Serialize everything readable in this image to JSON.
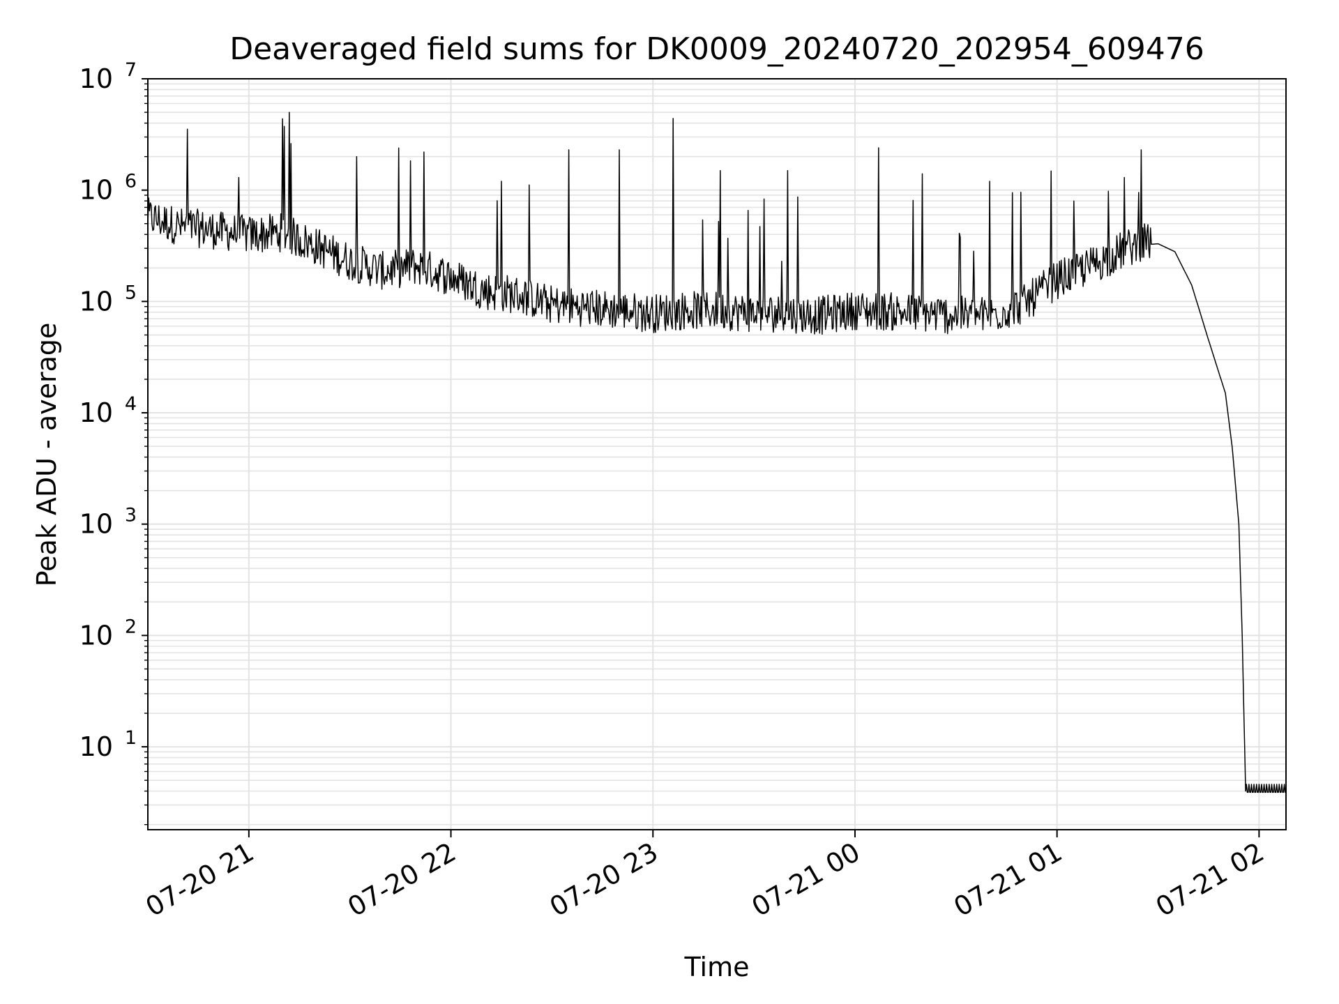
{
  "chart_data": {
    "type": "line",
    "title": "Deaveraged field sums for DK0009_20240720_202954_609476",
    "xlabel": "Time",
    "ylabel": "Peak ADU - average",
    "yscale": "log",
    "ylim": [
      1.8,
      10000000
    ],
    "xlim": [
      "07-20 20:30",
      "07-21 02:08"
    ],
    "x_ticks": [
      "07-20 21",
      "07-20 22",
      "07-20 23",
      "07-21 00",
      "07-21 01",
      "07-21 02"
    ],
    "y_ticks": [
      {
        "base": "10",
        "exp": "1"
      },
      {
        "base": "10",
        "exp": "2"
      },
      {
        "base": "10",
        "exp": "3"
      },
      {
        "base": "10",
        "exp": "4"
      },
      {
        "base": "10",
        "exp": "5"
      },
      {
        "base": "10",
        "exp": "6"
      },
      {
        "base": "10",
        "exp": "7"
      }
    ],
    "grid": true,
    "line_color": "#000000",
    "series": [
      {
        "values_note_free": true,
        "x": [
          "07-20 20:30",
          "07-20 20:40",
          "07-20 20:50",
          "07-20 21:00",
          "07-20 21:10",
          "07-20 21:20",
          "07-20 21:30",
          "07-20 21:40",
          "07-20 21:50",
          "07-20 22:00",
          "07-20 22:10",
          "07-20 22:20",
          "07-20 22:30",
          "07-20 22:40",
          "07-20 22:50",
          "07-20 23:00",
          "07-20 23:10",
          "07-20 23:20",
          "07-20 23:30",
          "07-20 23:40",
          "07-20 23:50",
          "07-21 00:00",
          "07-21 00:10",
          "07-21 00:20",
          "07-21 00:30",
          "07-21 00:40",
          "07-21 00:50",
          "07-21 01:00",
          "07-21 01:10",
          "07-21 01:20",
          "07-21 01:25",
          "07-21 01:30",
          "07-21 01:35",
          "07-21 01:40",
          "07-21 01:45",
          "07-21 01:50",
          "07-21 01:52",
          "07-21 01:54",
          "07-21 01:55",
          "07-21 01:56",
          "07-21 02:08"
        ],
        "values": [
          550000,
          450000,
          420000,
          380000,
          400000,
          300000,
          220000,
          180000,
          200000,
          160000,
          120000,
          110000,
          90000,
          85000,
          80000,
          75000,
          80000,
          80000,
          75000,
          75000,
          72000,
          80000,
          78000,
          75000,
          72000,
          72000,
          90000,
          150000,
          200000,
          280000,
          320000,
          330000,
          280000,
          140000,
          45000,
          15000,
          5000,
          1000,
          100,
          4,
          4
        ]
      }
    ],
    "spikes": [
      {
        "x": "07-20 21:12",
        "y": 5000000
      },
      {
        "x": "07-20 21:32",
        "y": 2000000
      },
      {
        "x": "07-20 21:52",
        "y": 2200000
      },
      {
        "x": "07-20 22:15",
        "y": 1200000
      },
      {
        "x": "07-20 22:35",
        "y": 2300000
      },
      {
        "x": "07-20 22:50",
        "y": 2300000
      },
      {
        "x": "07-20 23:06",
        "y": 4400000
      },
      {
        "x": "07-20 23:20",
        "y": 1500000
      },
      {
        "x": "07-20 23:40",
        "y": 1500000
      },
      {
        "x": "07-21 00:07",
        "y": 2400000
      },
      {
        "x": "07-21 00:20",
        "y": 1400000
      },
      {
        "x": "07-21 00:40",
        "y": 1200000
      },
      {
        "x": "07-21 01:05",
        "y": 800000
      },
      {
        "x": "07-21 01:20",
        "y": 1300000
      },
      {
        "x": "07-21 01:25",
        "y": 2300000
      }
    ]
  }
}
